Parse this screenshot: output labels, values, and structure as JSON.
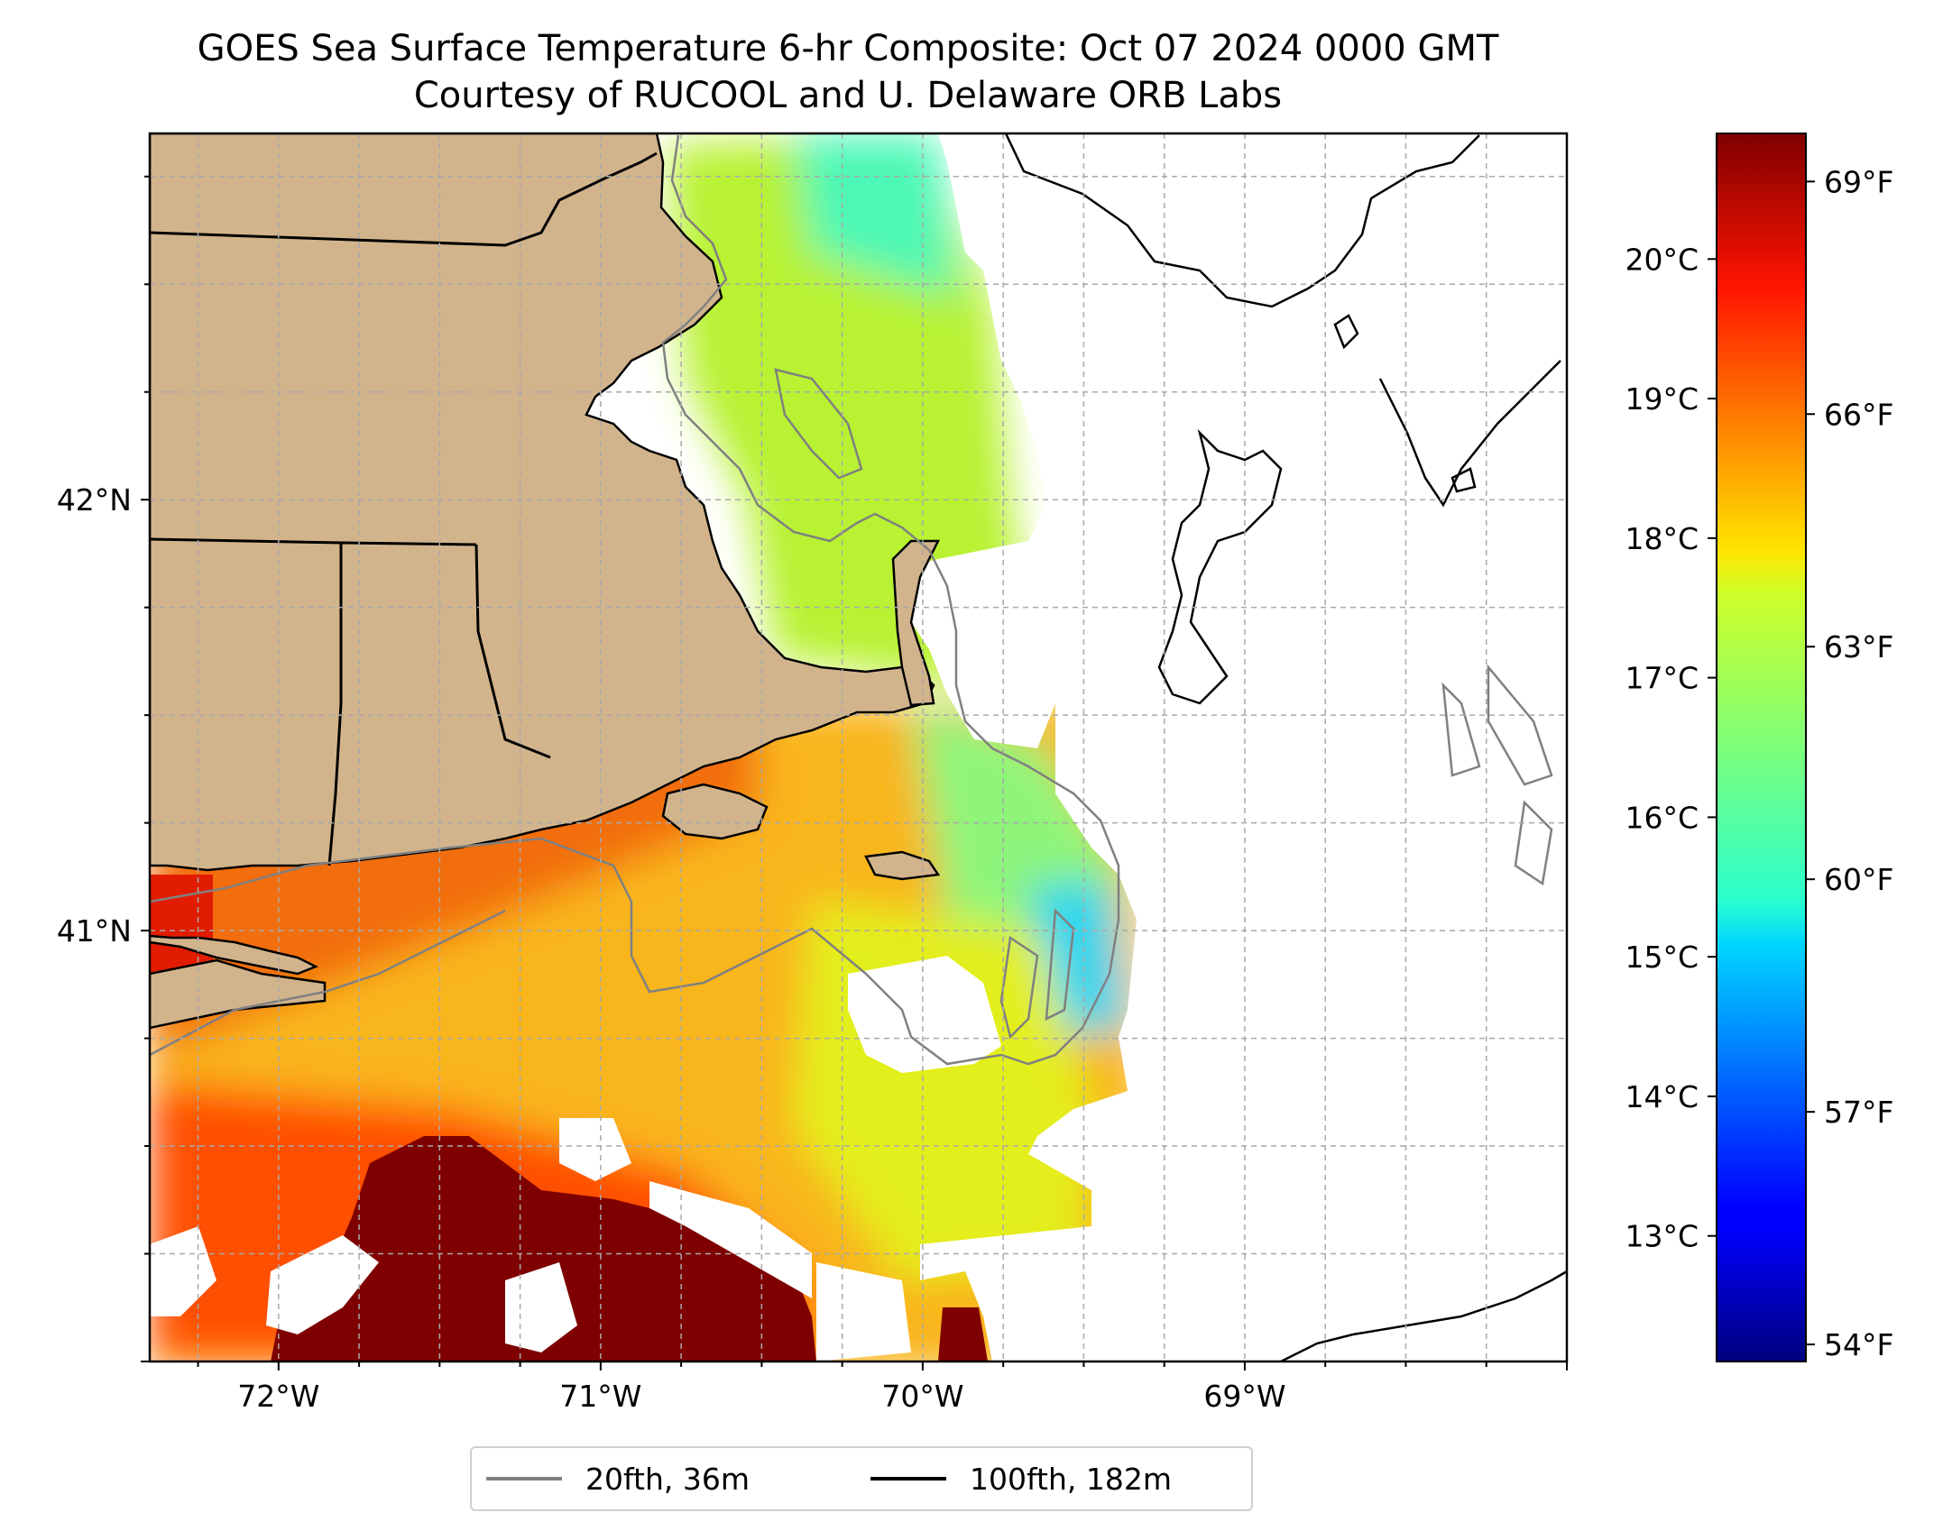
{
  "title": {
    "line1": "GOES Sea Surface Temperature 6-hr Composite: Oct 07 2024 0000 GMT",
    "line2": "Courtesy of RUCOOL and U. Delaware ORB Labs"
  },
  "map": {
    "extent": {
      "lon_min": -72.4,
      "lon_max": -68.0,
      "lat_min": 40.0,
      "lat_max": 42.85
    },
    "projection": "PlateCarree",
    "gridlines": {
      "style": "dashed",
      "color": "#a9a9a9",
      "lon_step": 0.25,
      "lat_step": 0.25
    },
    "x_ticks": [
      {
        "lon": -72,
        "label": "72°W"
      },
      {
        "lon": -71,
        "label": "71°W"
      },
      {
        "lon": -70,
        "label": "70°W"
      },
      {
        "lon": -69,
        "label": "69°W"
      }
    ],
    "y_ticks": [
      {
        "lat": 42,
        "label": "42°N"
      },
      {
        "lat": 41,
        "label": "41°N"
      }
    ],
    "land_color": "#d2b48c",
    "missing_data_color": "#ffffff"
  },
  "colorbar": {
    "colormap": "jet",
    "range_celsius": [
      12.1,
      20.9
    ],
    "celsius_ticks": [
      {
        "value": 13,
        "label": "13°C"
      },
      {
        "value": 14,
        "label": "14°C"
      },
      {
        "value": 15,
        "label": "15°C"
      },
      {
        "value": 16,
        "label": "16°C"
      },
      {
        "value": 17,
        "label": "17°C"
      },
      {
        "value": 18,
        "label": "18°C"
      },
      {
        "value": 19,
        "label": "19°C"
      },
      {
        "value": 20,
        "label": "20°C"
      }
    ],
    "fahrenheit_ticks": [
      {
        "value": 54,
        "label": "54°F"
      },
      {
        "value": 57,
        "label": "57°F"
      },
      {
        "value": 60,
        "label": "60°F"
      },
      {
        "value": 63,
        "label": "63°F"
      },
      {
        "value": 66,
        "label": "66°F"
      },
      {
        "value": 69,
        "label": "69°F"
      }
    ]
  },
  "legend": {
    "items": [
      {
        "label": "20fth, 36m",
        "color": "#808080"
      },
      {
        "label": "100fth, 182m",
        "color": "#000000"
      }
    ]
  }
}
